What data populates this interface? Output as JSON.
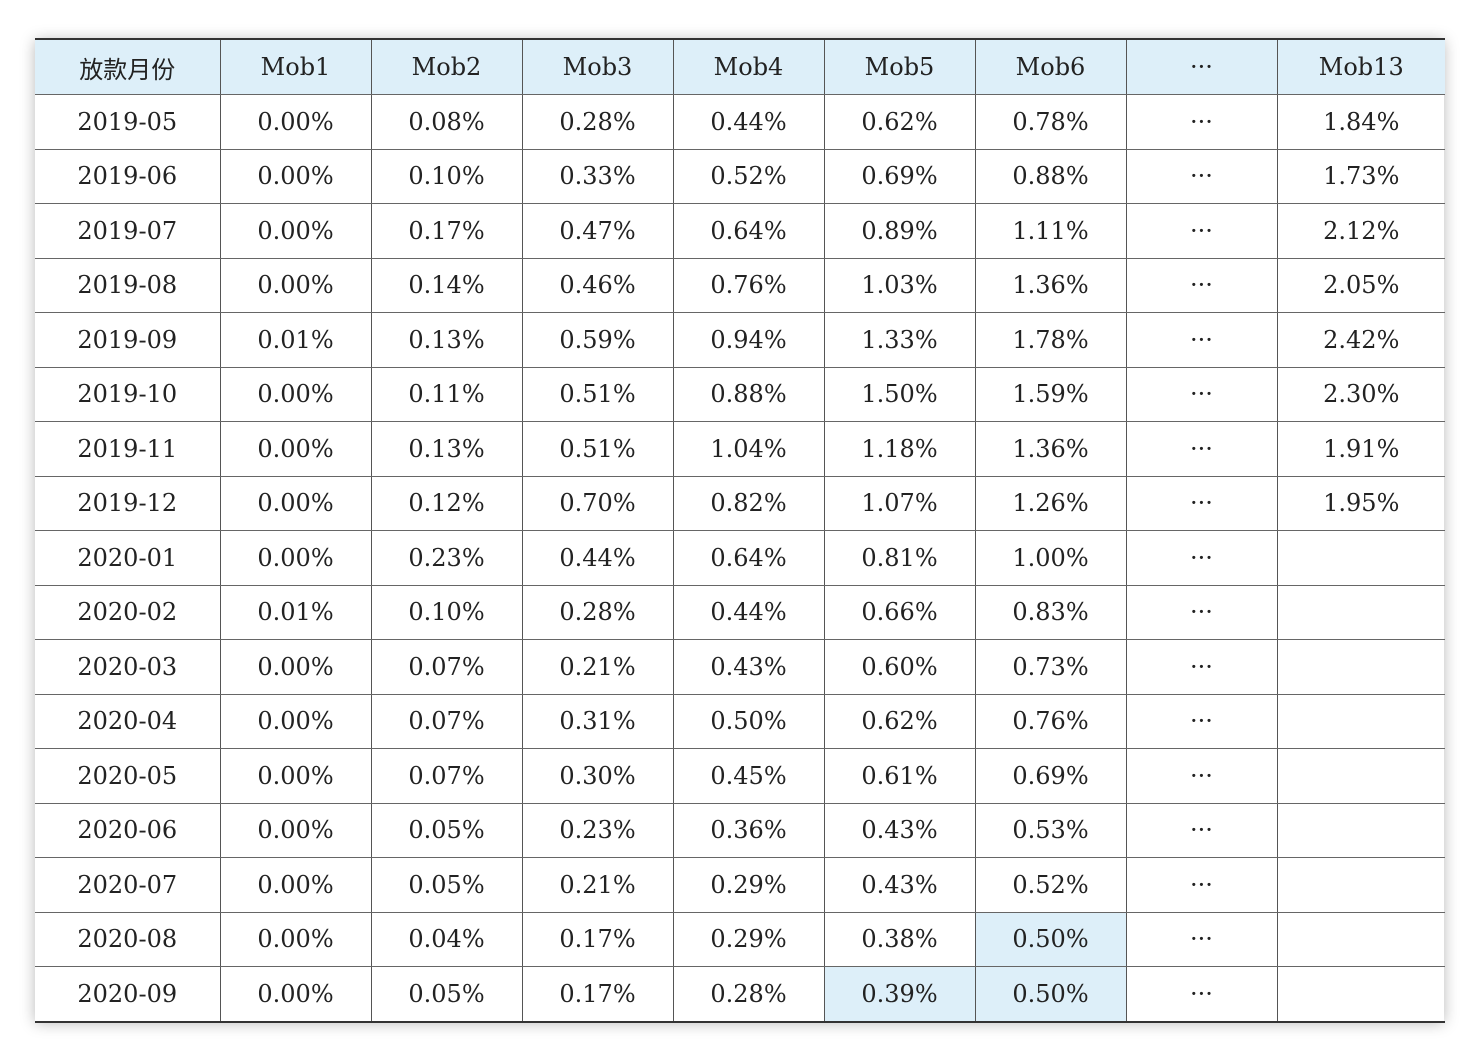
{
  "table": {
    "headers": [
      "放款月份",
      "Mob1",
      "Mob2",
      "Mob3",
      "Mob4",
      "Mob5",
      "Mob6",
      "···",
      "Mob13"
    ],
    "highlight_color": "#ddeff9",
    "rows": [
      [
        "2019-05",
        "0.00%",
        "0.08%",
        "0.28%",
        "0.44%",
        "0.62%",
        "0.78%",
        "···",
        "1.84%"
      ],
      [
        "2019-06",
        "0.00%",
        "0.10%",
        "0.33%",
        "0.52%",
        "0.69%",
        "0.88%",
        "···",
        "1.73%"
      ],
      [
        "2019-07",
        "0.00%",
        "0.17%",
        "0.47%",
        "0.64%",
        "0.89%",
        "1.11%",
        "···",
        "2.12%"
      ],
      [
        "2019-08",
        "0.00%",
        "0.14%",
        "0.46%",
        "0.76%",
        "1.03%",
        "1.36%",
        "···",
        "2.05%"
      ],
      [
        "2019-09",
        "0.01%",
        "0.13%",
        "0.59%",
        "0.94%",
        "1.33%",
        "1.78%",
        "···",
        "2.42%"
      ],
      [
        "2019-10",
        "0.00%",
        "0.11%",
        "0.51%",
        "0.88%",
        "1.50%",
        "1.59%",
        "···",
        "2.30%"
      ],
      [
        "2019-11",
        "0.00%",
        "0.13%",
        "0.51%",
        "1.04%",
        "1.18%",
        "1.36%",
        "···",
        "1.91%"
      ],
      [
        "2019-12",
        "0.00%",
        "0.12%",
        "0.70%",
        "0.82%",
        "1.07%",
        "1.26%",
        "···",
        "1.95%"
      ],
      [
        "2020-01",
        "0.00%",
        "0.23%",
        "0.44%",
        "0.64%",
        "0.81%",
        "1.00%",
        "···",
        ""
      ],
      [
        "2020-02",
        "0.01%",
        "0.10%",
        "0.28%",
        "0.44%",
        "0.66%",
        "0.83%",
        "···",
        ""
      ],
      [
        "2020-03",
        "0.00%",
        "0.07%",
        "0.21%",
        "0.43%",
        "0.60%",
        "0.73%",
        "···",
        ""
      ],
      [
        "2020-04",
        "0.00%",
        "0.07%",
        "0.31%",
        "0.50%",
        "0.62%",
        "0.76%",
        "···",
        ""
      ],
      [
        "2020-05",
        "0.00%",
        "0.07%",
        "0.30%",
        "0.45%",
        "0.61%",
        "0.69%",
        "···",
        ""
      ],
      [
        "2020-06",
        "0.00%",
        "0.05%",
        "0.23%",
        "0.36%",
        "0.43%",
        "0.53%",
        "···",
        ""
      ],
      [
        "2020-07",
        "0.00%",
        "0.05%",
        "0.21%",
        "0.29%",
        "0.43%",
        "0.52%",
        "···",
        ""
      ],
      [
        "2020-08",
        "0.00%",
        "0.04%",
        "0.17%",
        "0.29%",
        "0.38%",
        "0.50%",
        "···",
        ""
      ],
      [
        "2020-09",
        "0.00%",
        "0.05%",
        "0.17%",
        "0.28%",
        "0.39%",
        "0.50%",
        "···",
        ""
      ]
    ],
    "highlighted_cells": [
      [
        15,
        6
      ],
      [
        16,
        5
      ],
      [
        16,
        6
      ]
    ]
  }
}
